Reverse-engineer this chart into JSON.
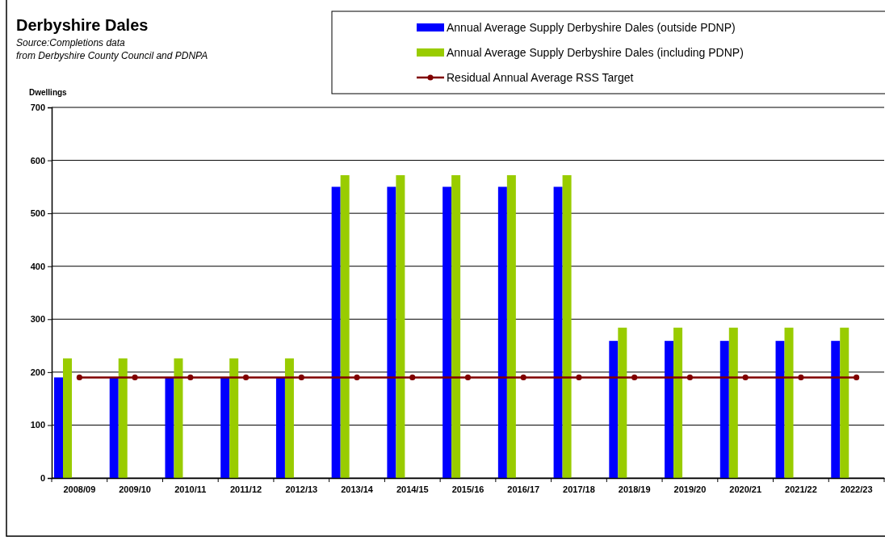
{
  "chart_data": {
    "type": "bar",
    "title": "Derbyshire Dales",
    "subtitle": "Source:Completions data from Derbyshire County Council and PDNPA",
    "ylabel": "Dwellings",
    "categories": [
      "2008/09",
      "2009/10",
      "2010/11",
      "2011/12",
      "2012/13",
      "2013/14",
      "2014/15",
      "2015/16",
      "2016/17",
      "2017/18",
      "2018/19",
      "2019/20",
      "2020/21",
      "2021/22",
      "2022/23"
    ],
    "series": [
      {
        "name": "Annual Average Supply Derbyshire Dales (outside PDNP)",
        "color": "#0000ff",
        "values": [
          190,
          190,
          190,
          190,
          190,
          550,
          550,
          550,
          550,
          550,
          259,
          259,
          259,
          259,
          259
        ]
      },
      {
        "name": "Annual Average Supply Derbyshire Dales (including PDNP)",
        "color": "#99cc00",
        "values": [
          226,
          226,
          226,
          226,
          226,
          572,
          572,
          572,
          572,
          572,
          284,
          284,
          284,
          284,
          284
        ]
      },
      {
        "name": "Residual Annual Average RSS Target",
        "type": "line",
        "color": "#800000",
        "marker": "circle",
        "values": [
          190,
          190,
          190,
          190,
          190,
          190,
          190,
          190,
          190,
          190,
          190,
          190,
          190,
          190,
          190
        ]
      }
    ],
    "ylim": [
      0,
      700
    ],
    "yticks": [
      0,
      100,
      200,
      300,
      400,
      500,
      600,
      700
    ],
    "grid": "y",
    "legend": "top right"
  }
}
